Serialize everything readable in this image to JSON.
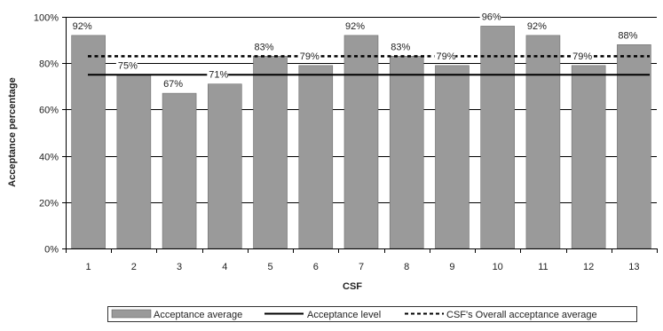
{
  "chart_data": {
    "type": "bar",
    "xlabel": "CSF",
    "ylabel": "Acceptance percentage",
    "categories": [
      "1",
      "2",
      "3",
      "4",
      "5",
      "6",
      "7",
      "8",
      "9",
      "10",
      "11",
      "12",
      "13"
    ],
    "series": [
      {
        "name": "Acceptance average",
        "type": "bar",
        "values": [
          92,
          75,
          67,
          71,
          83,
          79,
          92,
          83,
          79,
          96,
          92,
          79,
          88
        ],
        "color": "#9a9a9a"
      },
      {
        "name": "Acceptance level",
        "type": "line",
        "value": 75,
        "style": "solid",
        "color": "#000000"
      },
      {
        "name": "CSF's Overall acceptance average",
        "type": "line",
        "value": 83,
        "style": "dashed",
        "color": "#000000"
      }
    ],
    "data_labels": [
      "92%",
      "75%",
      "67%",
      "71%",
      "83%",
      "79%",
      "92%",
      "83%",
      "79%",
      "96%",
      "92%",
      "79%",
      "88%"
    ],
    "y_ticks": [
      "0%",
      "20%",
      "40%",
      "60%",
      "80%",
      "100%"
    ],
    "ylim": [
      0,
      100
    ],
    "grid": true,
    "legend_position": "bottom"
  }
}
